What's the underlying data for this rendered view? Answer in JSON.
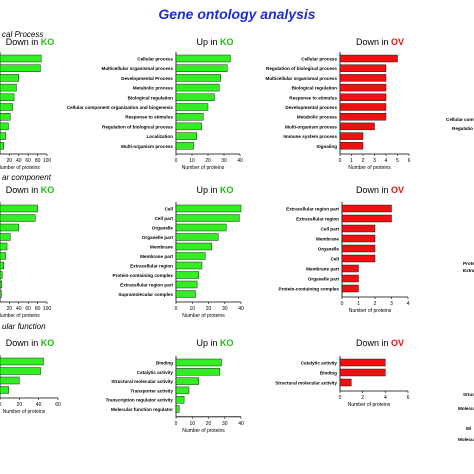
{
  "title": "Gene ontology analysis",
  "sections": [
    "cal Process",
    "ar component",
    "ular function"
  ],
  "colors": {
    "green": "#33ee22",
    "red": "#ee1111",
    "title": "#1f2bd6",
    "ko_label": "#22bb11",
    "ov_label": "#ee1111"
  },
  "footer_axis_label": "Number of proteins",
  "right_clip_labels": {
    "bp": [
      "Cellular component organ",
      "Regulatio"
    ],
    "cc": [
      "Prote",
      "Extra"
    ],
    "mf": [
      "Struc",
      "Molecu",
      "Mi",
      "Molecu"
    ]
  },
  "chart_data": [
    {
      "id": "bp_down_ko",
      "type": "bar",
      "orientation": "horizontal",
      "title_prefix": "Down in ",
      "title_suffix": "KO",
      "categories": [
        "",
        "",
        "",
        "",
        "",
        "",
        "",
        "",
        "",
        ""
      ],
      "values": [
        88,
        86,
        40,
        35,
        30,
        27,
        22,
        18,
        12,
        8
      ],
      "xlim": [
        0,
        100
      ],
      "xticks": [
        "20",
        "40",
        "60",
        "80",
        "100"
      ],
      "xlabel": "Number of proteins",
      "color": "green"
    },
    {
      "id": "bp_up_ko",
      "type": "bar",
      "orientation": "horizontal",
      "title_prefix": "Up in ",
      "title_suffix": "KO",
      "categories": [
        "Cellular process",
        "Multicellular organismal process",
        "Developmental Process",
        "Metabolic process",
        "Biological regulation",
        "Cellular component organization and biogenesis",
        "Response to stimulus",
        "Regulation of biological process",
        "Localization",
        "Multi-organism process"
      ],
      "values": [
        34,
        32,
        28,
        27,
        24,
        20,
        17,
        16,
        13,
        11
      ],
      "xlim": [
        0,
        40
      ],
      "xticks": [
        "0",
        "10",
        "20",
        "30",
        "40"
      ],
      "xlabel": "Number of proteins",
      "color": "green"
    },
    {
      "id": "bp_down_ov",
      "type": "bar",
      "orientation": "horizontal",
      "title_prefix": "Down in ",
      "title_suffix": "OV",
      "categories": [
        "Cellular process",
        "Regulation of biological process",
        "Multicellular organismal process",
        "Biological regulation",
        "Response to stimulus",
        "Developmental process",
        "Metabolic process",
        "Multi-organism process",
        "Immune system process",
        "Signaling"
      ],
      "values": [
        5,
        4,
        4,
        4,
        4,
        4,
        4,
        3,
        2,
        2
      ],
      "xlim": [
        0,
        6
      ],
      "xticks": [
        "0",
        "1",
        "2",
        "3",
        "4",
        "5",
        "6"
      ],
      "xlabel": "Number of proteins",
      "color": "red"
    },
    {
      "id": "cc_down_ko",
      "type": "bar",
      "orientation": "horizontal",
      "title_prefix": "Down in ",
      "title_suffix": "KO",
      "categories": [
        "",
        "",
        "",
        "",
        "",
        "",
        "",
        "",
        "",
        ""
      ],
      "values": [
        80,
        75,
        40,
        22,
        15,
        12,
        8,
        5,
        4,
        3
      ],
      "xlim": [
        0,
        100
      ],
      "xticks": [
        "20",
        "40",
        "60",
        "80",
        "100"
      ],
      "xlabel": "Number of proteins",
      "color": "green"
    },
    {
      "id": "cc_up_ko",
      "type": "bar",
      "orientation": "horizontal",
      "title_prefix": "Up in ",
      "title_suffix": "KO",
      "categories": [
        "Cell",
        "Cell part",
        "Organelle",
        "Organelle part",
        "Membrane",
        "Membrane part",
        "Extracellular region",
        "Protein-containing complex",
        "Extracellular region part",
        "Supramolecular complex"
      ],
      "values": [
        40,
        39,
        31,
        26,
        22,
        18,
        16,
        14,
        13,
        12
      ],
      "xlim": [
        0,
        40
      ],
      "xticks": [
        "0",
        "10",
        "20",
        "30",
        "40"
      ],
      "xlabel": "Number of proteins",
      "color": "green"
    },
    {
      "id": "cc_down_ov",
      "type": "bar",
      "orientation": "horizontal",
      "title_prefix": "Down in ",
      "title_suffix": "OV",
      "categories": [
        "Extracellular region part",
        "Extracellular region",
        "Cell part",
        "Membrane",
        "Organelle",
        "Cell",
        "Membrane part",
        "Organelle part",
        "Protein-containing complex"
      ],
      "values": [
        3,
        3,
        2,
        2,
        2,
        2,
        1,
        1,
        1
      ],
      "xlim": [
        0,
        4
      ],
      "xticks": [
        "0",
        "1",
        "2",
        "3",
        "4"
      ],
      "xlabel": "Number of proteins",
      "color": "red"
    },
    {
      "id": "mf_down_ko",
      "type": "bar",
      "orientation": "horizontal",
      "title_prefix": "Down in ",
      "title_suffix": "KO",
      "categories": [
        "",
        "",
        "",
        ""
      ],
      "values": [
        45,
        42,
        20,
        9
      ],
      "xlim": [
        0,
        60
      ],
      "xticks": [
        "0",
        "20",
        "40",
        "60"
      ],
      "xlabel": "Number of proteins",
      "color": "green"
    },
    {
      "id": "mf_up_ko",
      "type": "bar",
      "orientation": "horizontal",
      "title_prefix": "Up in ",
      "title_suffix": "KO",
      "categories": [
        "Binding",
        "Catalytic activity",
        "Structural molecular activity",
        "Transporter activity",
        "Transcription regulator activity",
        "Molecular function regulator"
      ],
      "values": [
        28,
        27,
        14,
        8,
        5,
        2
      ],
      "xlim": [
        0,
        40
      ],
      "xticks": [
        "0",
        "10",
        "20",
        "30",
        "40"
      ],
      "xlabel": "Number of proteins",
      "color": "green"
    },
    {
      "id": "mf_down_ov",
      "type": "bar",
      "orientation": "horizontal",
      "title_prefix": "Down in ",
      "title_suffix": "OV",
      "categories": [
        "Catalytic activity",
        "Binding",
        "Structural molecular activity"
      ],
      "values": [
        4,
        4,
        1
      ],
      "xlim": [
        0,
        6
      ],
      "xticks": [
        "0",
        "2",
        "4",
        "6"
      ],
      "xlabel": "Number of proteins",
      "color": "red"
    }
  ]
}
